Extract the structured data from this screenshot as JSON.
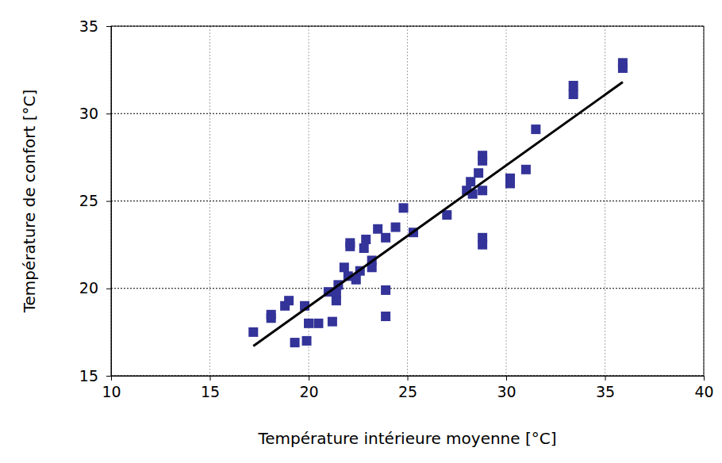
{
  "chart_data": {
    "type": "scatter",
    "x_label": "Température intérieure moyenne [°C]",
    "y_label": "Température de confort [°C]",
    "xlim": [
      10,
      40
    ],
    "xticks": [
      10,
      15,
      20,
      25,
      30,
      35,
      40
    ],
    "ylim": [
      15,
      35
    ],
    "yticks": [
      15,
      20,
      25,
      30,
      35
    ],
    "grid": true,
    "series": [
      {
        "type": "scatter",
        "color": "#333399",
        "marker": "square",
        "x": [
          17.2,
          18.1,
          18.1,
          18.8,
          19.0,
          19.3,
          19.8,
          19.9,
          20.0,
          20.5,
          21.0,
          21.2,
          21.4,
          21.4,
          21.5,
          21.8,
          22.0,
          22.1,
          22.1,
          22.4,
          22.6,
          22.8,
          22.9,
          23.2,
          23.2,
          23.5,
          23.9,
          23.9,
          23.9,
          24.4,
          24.8,
          25.3,
          27.0,
          28.0,
          28.2,
          28.3,
          28.6,
          28.8,
          28.8,
          28.8,
          28.8,
          28.8,
          30.2,
          30.2,
          31.0,
          31.5,
          33.4,
          33.4,
          35.9,
          35.9
        ],
        "values": [
          17.5,
          18.3,
          18.5,
          19.0,
          19.3,
          16.9,
          19.0,
          17.0,
          18.0,
          18.0,
          19.8,
          18.1,
          19.3,
          19.7,
          20.2,
          21.2,
          20.7,
          22.4,
          22.6,
          20.5,
          21.0,
          22.3,
          22.8,
          21.2,
          21.6,
          23.4,
          22.9,
          19.9,
          18.4,
          23.5,
          24.6,
          23.2,
          24.2,
          25.6,
          26.1,
          25.4,
          26.6,
          27.3,
          27.6,
          25.6,
          22.9,
          22.5,
          26.0,
          26.3,
          26.8,
          29.1,
          31.1,
          31.6,
          32.6,
          32.9
        ]
      },
      {
        "type": "line",
        "color": "#000000",
        "line_style": "solid",
        "x": [
          17.2,
          35.9
        ],
        "values": [
          16.7,
          31.8
        ]
      }
    ]
  }
}
